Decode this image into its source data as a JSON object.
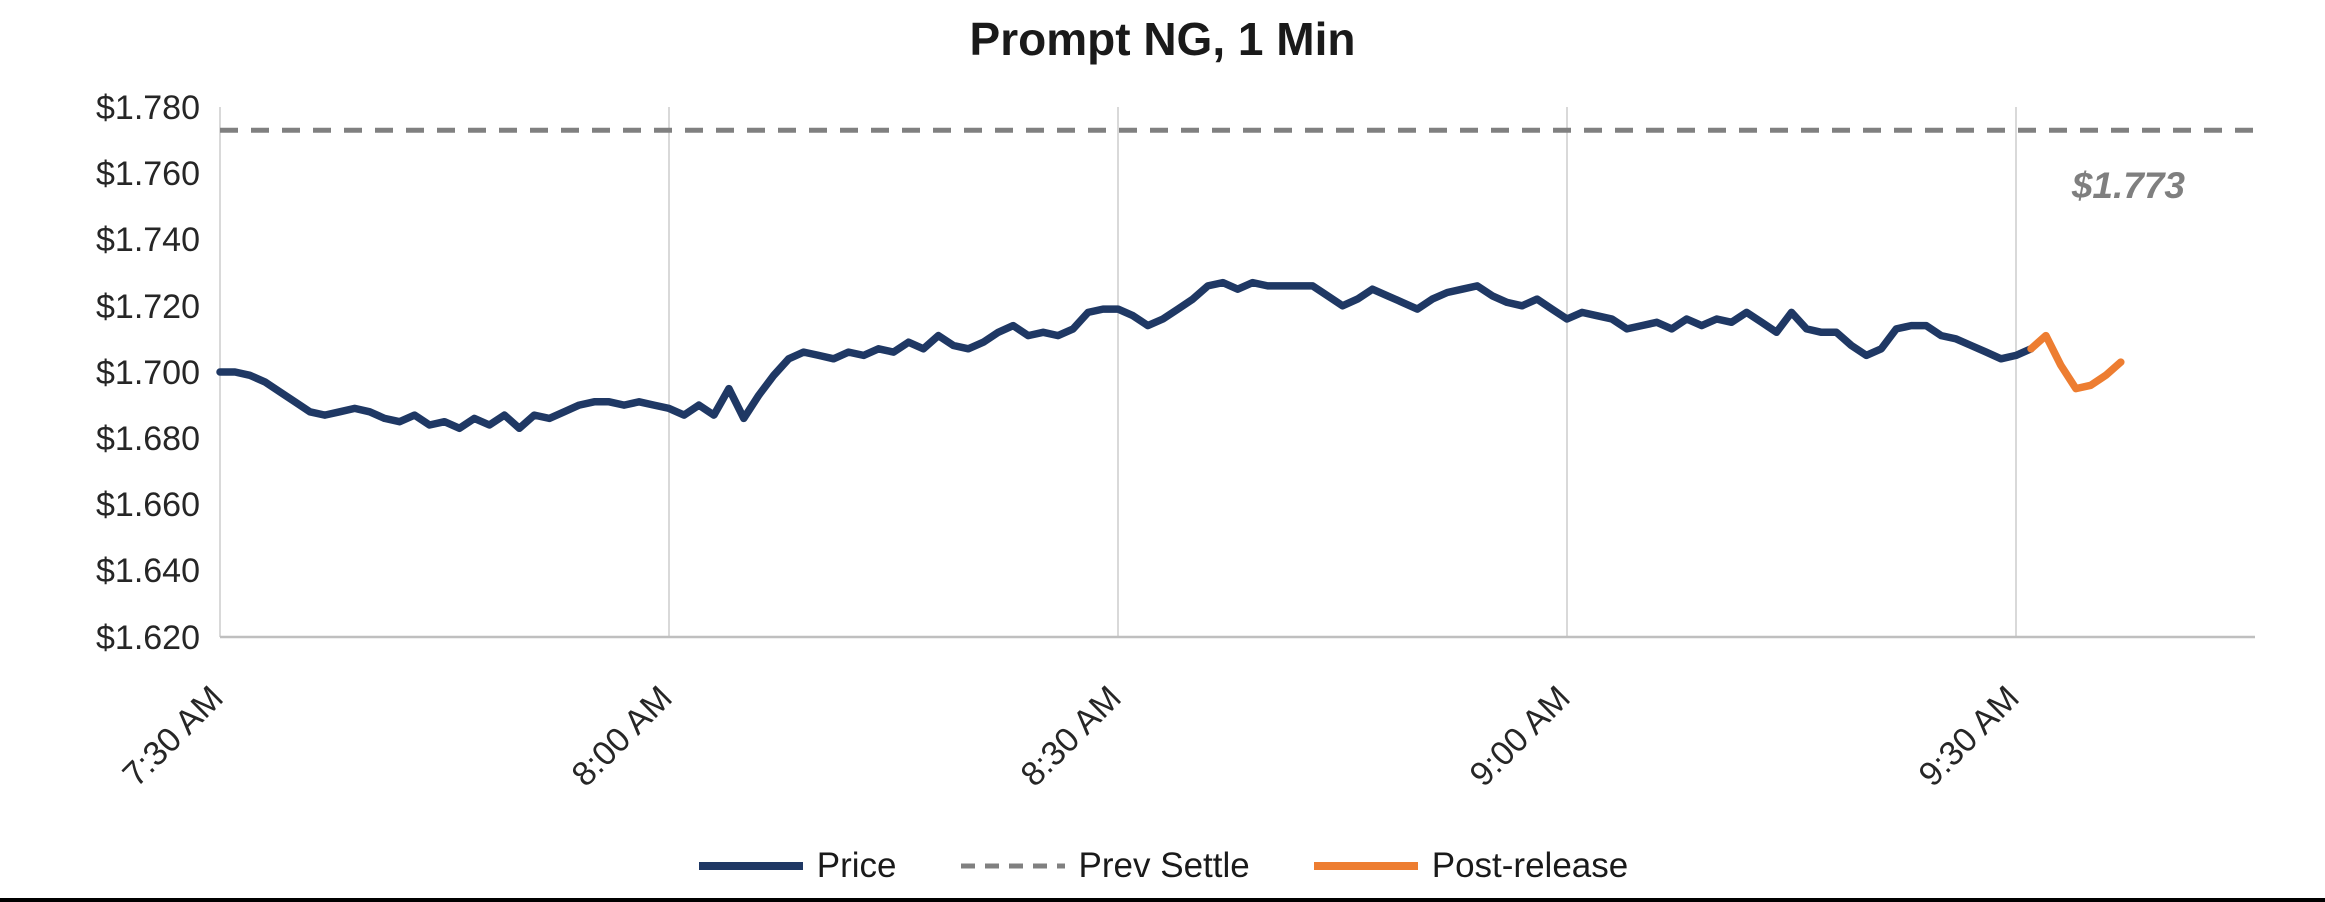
{
  "chart_data": {
    "type": "line",
    "title": "Prompt NG, 1 Min",
    "xlabel": "",
    "ylabel": "",
    "ylim": [
      1.62,
      1.78
    ],
    "y_tick_step": 0.02,
    "y_tick_labels": [
      "$1.780",
      "$1.760",
      "$1.740",
      "$1.720",
      "$1.700",
      "$1.680",
      "$1.660",
      "$1.640",
      "$1.620"
    ],
    "x_tick_labels": [
      "7:30 AM",
      "8:00 AM",
      "8:30 AM",
      "9:00 AM",
      "9:30 AM"
    ],
    "x_tick_minutes": [
      0,
      30,
      60,
      90,
      120
    ],
    "grid": "vertical-only",
    "legend_position": "bottom-center",
    "prev_settle": 1.773,
    "prev_settle_label": "$1.773",
    "prev_settle_color": "#808080",
    "legend": [
      {
        "label": "Price",
        "color": "#1f3864",
        "style": "solid"
      },
      {
        "label": "Prev Settle",
        "color": "#808080",
        "style": "dashed"
      },
      {
        "label": "Post-release",
        "color": "#ed7d31",
        "style": "solid"
      }
    ],
    "series": [
      {
        "name": "Price",
        "color": "#1f3864",
        "x_start_minute": 0,
        "x_step_minutes": 1,
        "values": [
          1.7,
          1.7,
          1.699,
          1.697,
          1.694,
          1.691,
          1.688,
          1.687,
          1.688,
          1.689,
          1.688,
          1.686,
          1.685,
          1.687,
          1.684,
          1.685,
          1.683,
          1.686,
          1.684,
          1.687,
          1.683,
          1.687,
          1.686,
          1.688,
          1.69,
          1.691,
          1.691,
          1.69,
          1.691,
          1.69,
          1.689,
          1.687,
          1.69,
          1.687,
          1.695,
          1.686,
          1.693,
          1.699,
          1.704,
          1.706,
          1.705,
          1.704,
          1.706,
          1.705,
          1.707,
          1.706,
          1.709,
          1.707,
          1.711,
          1.708,
          1.707,
          1.709,
          1.712,
          1.714,
          1.711,
          1.712,
          1.711,
          1.713,
          1.718,
          1.719,
          1.719,
          1.717,
          1.714,
          1.716,
          1.719,
          1.722,
          1.726,
          1.727,
          1.725,
          1.727,
          1.726,
          1.726,
          1.726,
          1.726,
          1.723,
          1.72,
          1.722,
          1.725,
          1.723,
          1.721,
          1.719,
          1.722,
          1.724,
          1.725,
          1.726,
          1.723,
          1.721,
          1.72,
          1.722,
          1.719,
          1.716,
          1.718,
          1.717,
          1.716,
          1.713,
          1.714,
          1.715,
          1.713,
          1.716,
          1.714,
          1.716,
          1.715,
          1.718,
          1.715,
          1.712,
          1.718,
          1.713,
          1.712,
          1.712,
          1.708,
          1.705,
          1.707,
          1.713,
          1.714,
          1.714,
          1.711,
          1.71,
          1.708,
          1.706,
          1.704,
          1.705,
          1.707
        ]
      },
      {
        "name": "Post-release",
        "color": "#ed7d31",
        "x_start_minute": 121,
        "x_step_minutes": 1,
        "values": [
          1.707,
          1.711,
          1.702,
          1.695,
          1.696,
          1.699,
          1.703
        ]
      }
    ]
  }
}
